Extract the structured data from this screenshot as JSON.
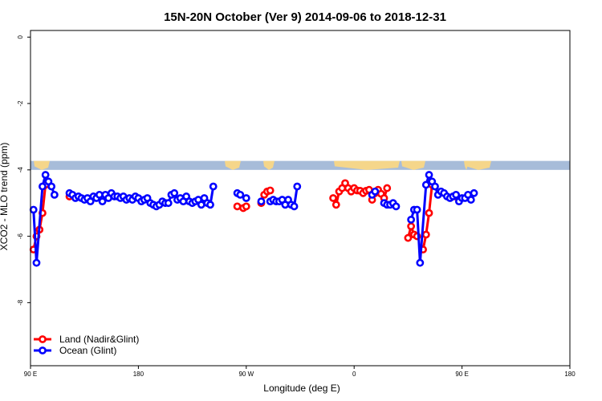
{
  "chart_data": {
    "type": "line",
    "title": "15N-20N October (Ver 9)   2014-09-06 to 2018-12-31",
    "xlabel": "Longitude (deg E)",
    "ylabel": "XCO2 - MLO trend (ppm)",
    "xlim": [
      90,
      450
    ],
    "ylim": [
      -10,
      0.2
    ],
    "x_ticks": [
      {
        "value": 90,
        "label": "90 E"
      },
      {
        "value": 180,
        "label": "180"
      },
      {
        "value": 270,
        "label": "90 W"
      },
      {
        "value": 360,
        "label": "0"
      },
      {
        "value": 450,
        "label": "90 E"
      },
      {
        "value": 540,
        "label": "180"
      }
    ],
    "y_ticks": [
      {
        "value": 0,
        "label": "0"
      },
      {
        "value": -2,
        "label": "-2"
      },
      {
        "value": -4,
        "label": "-4"
      },
      {
        "value": -6,
        "label": "-6"
      },
      {
        "value": -8,
        "label": "-8"
      }
    ],
    "x_axis_max": 540,
    "y_axis_min": -9.9,
    "grid": false,
    "legend_position": "bottom-left",
    "land_band": {
      "y_top": -3.73,
      "y_bottom": -4.0,
      "color": "#a7bcd9",
      "land_color": "#f5d68a"
    },
    "series": [
      {
        "name": "Land (Nadir&Glint)",
        "color": "#ff0000",
        "segments": [
          [
            [
              92.5,
              -6.4
            ],
            [
              95,
              -6.0
            ],
            [
              97.5,
              -5.8
            ],
            [
              100,
              -5.3
            ],
            [
              102.5,
              -4.45
            ]
          ],
          [
            [
              122.5,
              -4.8
            ]
          ],
          [
            [
              262.5,
              -5.1
            ]
          ],
          [
            [
              267.5,
              -5.15
            ],
            [
              270,
              -5.1
            ]
          ],
          [
            [
              282.5,
              -5.0
            ],
            [
              285,
              -4.75
            ],
            [
              287.5,
              -4.65
            ],
            [
              290,
              -4.62
            ]
          ],
          [
            [
              342.5,
              -4.85
            ],
            [
              345,
              -5.05
            ],
            [
              347.5,
              -4.65
            ],
            [
              350,
              -4.55
            ]
          ],
          [
            [
              352.5,
              -4.4
            ],
            [
              355,
              -4.55
            ],
            [
              357.5,
              -4.65
            ],
            [
              360,
              -4.55
            ],
            [
              362.5,
              -4.62
            ],
            [
              365,
              -4.63
            ],
            [
              367.5,
              -4.7
            ],
            [
              370,
              -4.63
            ],
            [
              372.5,
              -4.6
            ],
            [
              375,
              -4.9
            ],
            [
              377.5,
              -4.7
            ],
            [
              380,
              -4.6
            ],
            [
              382.5,
              -4.72
            ],
            [
              385,
              -4.85
            ],
            [
              387.5,
              -4.55
            ]
          ],
          [
            [
              405,
              -6.05
            ],
            [
              407.5,
              -5.7
            ],
            [
              410,
              -5.95
            ],
            [
              412.5,
              -6.0
            ]
          ],
          [
            [
              417.5,
              -6.4
            ],
            [
              420,
              -5.95
            ],
            [
              422.5,
              -5.3
            ],
            [
              425,
              -4.45
            ]
          ],
          [
            [
              444.5,
              -4.8
            ]
          ]
        ]
      },
      {
        "name": "Ocean (Glint)",
        "color": "#0000ff",
        "segments": [
          [
            [
              92.5,
              -5.2
            ],
            [
              95,
              -6.8
            ],
            [
              100,
              -4.5
            ],
            [
              102.5,
              -4.15
            ],
            [
              105,
              -4.35
            ],
            [
              107.5,
              -4.5
            ],
            [
              110,
              -4.75
            ]
          ],
          [
            [
              122.5,
              -4.7
            ],
            [
              125,
              -4.75
            ],
            [
              127.5,
              -4.85
            ],
            [
              130,
              -4.8
            ],
            [
              132.5,
              -4.85
            ],
            [
              135,
              -4.9
            ],
            [
              137.5,
              -4.85
            ],
            [
              140,
              -4.95
            ],
            [
              142.5,
              -4.8
            ],
            [
              145,
              -4.85
            ],
            [
              147.5,
              -4.75
            ],
            [
              150,
              -4.95
            ],
            [
              152.5,
              -4.75
            ],
            [
              155,
              -4.85
            ],
            [
              157.5,
              -4.7
            ],
            [
              160,
              -4.8
            ],
            [
              162.5,
              -4.8
            ],
            [
              165,
              -4.85
            ],
            [
              167.5,
              -4.8
            ],
            [
              170,
              -4.9
            ],
            [
              172.5,
              -4.85
            ],
            [
              175,
              -4.9
            ],
            [
              177.5,
              -4.8
            ],
            [
              180,
              -4.85
            ],
            [
              182.5,
              -4.95
            ],
            [
              185,
              -4.9
            ],
            [
              187.5,
              -4.85
            ],
            [
              190,
              -5.0
            ],
            [
              192.5,
              -5.05
            ],
            [
              195,
              -5.1
            ],
            [
              197.5,
              -5.05
            ],
            [
              200,
              -4.95
            ],
            [
              202.5,
              -5.0
            ],
            [
              205,
              -5.0
            ],
            [
              207.5,
              -4.75
            ],
            [
              210,
              -4.7
            ],
            [
              212.5,
              -4.9
            ],
            [
              215,
              -4.85
            ],
            [
              217.5,
              -4.95
            ],
            [
              220,
              -4.8
            ],
            [
              222.5,
              -4.95
            ],
            [
              225,
              -5.0
            ],
            [
              227.5,
              -4.95
            ],
            [
              230,
              -4.9
            ],
            [
              232.5,
              -5.05
            ],
            [
              235,
              -4.85
            ],
            [
              237.5,
              -5.0
            ],
            [
              240,
              -5.05
            ],
            [
              242.5,
              -4.5
            ]
          ],
          [
            [
              262.5,
              -4.7
            ],
            [
              265,
              -4.75
            ],
            [
              270,
              -4.85
            ]
          ],
          [
            [
              282.5,
              -4.95
            ]
          ],
          [
            [
              290,
              -4.95
            ],
            [
              292.5,
              -4.9
            ],
            [
              295,
              -4.95
            ],
            [
              297.5,
              -4.95
            ],
            [
              300,
              -4.9
            ],
            [
              302.5,
              -5.05
            ],
            [
              305,
              -4.9
            ],
            [
              307.5,
              -5.05
            ],
            [
              310,
              -5.1
            ],
            [
              312.5,
              -4.5
            ]
          ],
          [
            [
              375,
              -4.75
            ],
            [
              377.5,
              -4.65
            ]
          ],
          [
            [
              385,
              -5.0
            ],
            [
              387.5,
              -5.05
            ],
            [
              390,
              -5.05
            ],
            [
              392.5,
              -5.0
            ],
            [
              395,
              -5.1
            ]
          ],
          [
            [
              407.5,
              -5.5
            ],
            [
              410,
              -5.2
            ],
            [
              412.5,
              -5.2
            ],
            [
              415,
              -6.8
            ],
            [
              420,
              -4.45
            ],
            [
              422.5,
              -4.15
            ],
            [
              425,
              -4.35
            ],
            [
              427.5,
              -4.5
            ],
            [
              430,
              -4.75
            ],
            [
              432.5,
              -4.65
            ],
            [
              435,
              -4.7
            ],
            [
              437.5,
              -4.8
            ],
            [
              440,
              -4.85
            ],
            [
              442.5,
              -4.8
            ],
            [
              445,
              -4.75
            ],
            [
              447.5,
              -4.95
            ],
            [
              450,
              -4.85
            ],
            [
              452.5,
              -4.85
            ],
            [
              455,
              -4.75
            ],
            [
              457.5,
              -4.9
            ],
            [
              460,
              -4.7
            ]
          ]
        ]
      }
    ]
  }
}
